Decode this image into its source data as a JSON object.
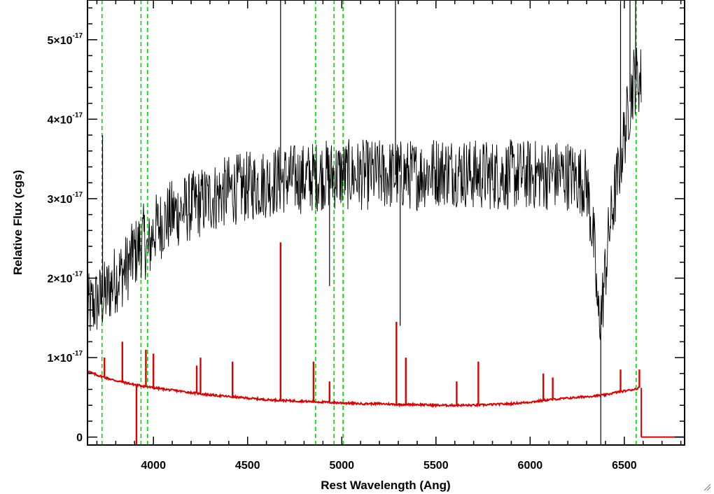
{
  "chart_data": {
    "type": "line",
    "title": "",
    "xlabel": "Rest Wavelength (Ang)",
    "ylabel": "Relative Flux (cgs)",
    "xlim": [
      3650,
      6820
    ],
    "ylim": [
      -1e-18,
      5.5e-17
    ],
    "x_ticks": [
      4000,
      4500,
      5000,
      5500,
      6000,
      6500
    ],
    "x_tick_labels": [
      "4000",
      "4500",
      "5000",
      "5500",
      "6000",
      "6500"
    ],
    "y_ticks": [
      0,
      1e-17,
      2e-17,
      3e-17,
      4e-17,
      5e-17
    ],
    "y_tick_labels": [
      {
        "mantissa": "0",
        "exponent": ""
      },
      {
        "mantissa": "1×10",
        "exponent": "-17"
      },
      {
        "mantissa": "2×10",
        "exponent": "-17"
      },
      {
        "mantissa": "3×10",
        "exponent": "-17"
      },
      {
        "mantissa": "4×10",
        "exponent": "-17"
      },
      {
        "mantissa": "5×10",
        "exponent": "-17"
      }
    ],
    "grid": false,
    "vertical_lines": {
      "color": "#00dd00",
      "style": "dashed",
      "x": [
        3727,
        3934,
        3969,
        4861,
        4959,
        5007,
        6563
      ]
    },
    "series": [
      {
        "color": "#000000",
        "x": [
          3650,
          3700,
          3750,
          3800,
          3850,
          3900,
          3950,
          3970,
          4000,
          4100,
          4200,
          4300,
          4400,
          4500,
          4600,
          4700,
          4800,
          4900,
          5000,
          5100,
          5200,
          5300,
          5400,
          5500,
          5600,
          5700,
          5800,
          5900,
          6000,
          6100,
          6200,
          6300,
          6340,
          6360,
          6380,
          6420,
          6460,
          6500,
          6550,
          6590
        ],
        "y": [
          1.6e-17,
          1.7e-17,
          1.8e-17,
          2e-17,
          2.1e-17,
          2.3e-17,
          2.5e-17,
          2.3e-17,
          2.6e-17,
          2.8e-17,
          2.9e-17,
          3e-17,
          3.1e-17,
          3.15e-17,
          3.2e-17,
          3.25e-17,
          3.25e-17,
          3.3e-17,
          3.3e-17,
          3.3e-17,
          3.3e-17,
          3.3e-17,
          3.3e-17,
          3.35e-17,
          3.35e-17,
          3.3e-17,
          3.3e-17,
          3.3e-17,
          3.3e-17,
          3.3e-17,
          3.3e-17,
          3.2e-17,
          2.4e-17,
          1.5e-17,
          1.6e-17,
          2.6e-17,
          3.2e-17,
          3.8e-17,
          4.5e-17,
          4.5e-17
        ],
        "spikes": [
          {
            "x": 3730,
            "y": 3.8e-17
          },
          {
            "x": 3890,
            "y": 2.6e-17
          },
          {
            "x": 4675,
            "y": 6e-17
          },
          {
            "x": 4935,
            "y": 1.9e-17
          },
          {
            "x": 5285,
            "y": 6e-17
          },
          {
            "x": 5310,
            "y": 1.4e-17
          },
          {
            "x": 6375,
            "y": -5e-18
          },
          {
            "x": 6480,
            "y": 6e-17
          },
          {
            "x": 6530,
            "y": 6e-17
          },
          {
            "x": 6560,
            "y": 6e-17
          }
        ]
      },
      {
        "color": "#dd0000",
        "x": [
          3650,
          3700,
          3800,
          3900,
          4000,
          4100,
          4200,
          4300,
          4400,
          4500,
          4600,
          4700,
          4800,
          4900,
          5000,
          5100,
          5200,
          5300,
          5400,
          5500,
          5600,
          5700,
          5800,
          5900,
          6000,
          6100,
          6200,
          6300,
          6400,
          6450,
          6500,
          6550,
          6580
        ],
        "y": [
          8.3e-18,
          7.8e-18,
          7.1e-18,
          6.6e-18,
          6.2e-18,
          5.9e-18,
          5.6e-18,
          5.3e-18,
          5.1e-18,
          4.9e-18,
          4.7e-18,
          4.6e-18,
          4.5e-18,
          4.4e-18,
          4.3e-18,
          4.2e-18,
          4.2e-18,
          4.1e-18,
          4.1e-18,
          4e-18,
          4e-18,
          4e-18,
          4.1e-18,
          4.2e-18,
          4.4e-18,
          4.7e-18,
          4.9e-18,
          5.1e-18,
          5.3e-18,
          5.6e-18,
          5.8e-18,
          6e-18,
          6.2e-18
        ],
        "spikes": [
          {
            "x": 3740,
            "y": 1e-17
          },
          {
            "x": 3835,
            "y": 1.2e-17
          },
          {
            "x": 3910,
            "y": -4e-18
          },
          {
            "x": 3960,
            "y": 1.1e-17
          },
          {
            "x": 4000,
            "y": 1.05e-17
          },
          {
            "x": 4230,
            "y": 9e-18
          },
          {
            "x": 4250,
            "y": 1e-17
          },
          {
            "x": 4420,
            "y": 9.5e-18
          },
          {
            "x": 4675,
            "y": 2.45e-17
          },
          {
            "x": 4850,
            "y": 9.5e-18
          },
          {
            "x": 4935,
            "y": 7e-18
          },
          {
            "x": 5290,
            "y": 1.45e-17
          },
          {
            "x": 5340,
            "y": 1e-17
          },
          {
            "x": 5610,
            "y": 7e-18
          },
          {
            "x": 5725,
            "y": 9.5e-18
          },
          {
            "x": 6070,
            "y": 8e-18
          },
          {
            "x": 6120,
            "y": 7.5e-18
          },
          {
            "x": 6480,
            "y": 8.5e-18
          },
          {
            "x": 6580,
            "y": 8.5e-18
          }
        ],
        "tail": {
          "x": [
            6590,
            6820
          ],
          "y": [
            0,
            0
          ]
        }
      }
    ]
  }
}
